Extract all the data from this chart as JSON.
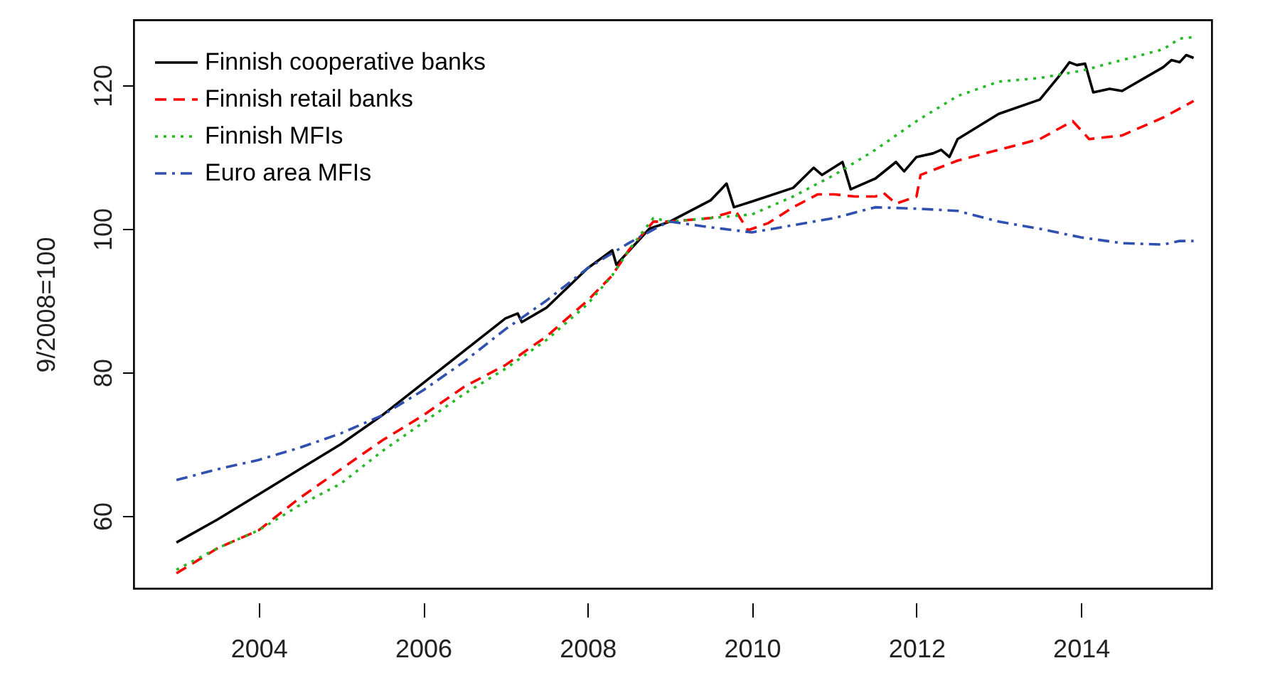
{
  "chart_data": {
    "type": "line",
    "ylabel": "9/2008=100",
    "xlim": [
      2002.48,
      2015.59
    ],
    "ylim": [
      49.9,
      129.1
    ],
    "xticks": [
      2004,
      2006,
      2008,
      2010,
      2012,
      2014
    ],
    "yticks": [
      60,
      80,
      100,
      120
    ],
    "grid": false,
    "legend": "top left",
    "marker": "none",
    "series": [
      {
        "name": "Finnish cooperative banks",
        "color": "#000000",
        "line_style": "solid",
        "x": [
          2003.0,
          2003.5,
          2004.0,
          2004.5,
          2005.0,
          2005.5,
          2006.0,
          2006.5,
          2007.0,
          2007.15,
          2007.2,
          2007.5,
          2008.0,
          2008.3,
          2008.35,
          2008.75,
          2009.0,
          2009.5,
          2009.69,
          2009.78,
          2010.0,
          2010.5,
          2010.75,
          2010.85,
          2011.1,
          2011.2,
          2011.5,
          2011.75,
          2011.85,
          2012.0,
          2012.2,
          2012.3,
          2012.4,
          2012.5,
          2013.0,
          2013.5,
          2013.75,
          2013.86,
          2013.95,
          2014.05,
          2014.15,
          2014.35,
          2014.5,
          2015.0,
          2015.1,
          2015.2,
          2015.28,
          2015.37
        ],
        "values": [
          56.3,
          59.5,
          63,
          66.5,
          70,
          74,
          78.5,
          83,
          87.5,
          88.2,
          87,
          89,
          94.5,
          97,
          95,
          100,
          101,
          104,
          106.3,
          103,
          103.8,
          105.7,
          108.5,
          107.5,
          109.3,
          105.5,
          107,
          109.3,
          108,
          110,
          110.5,
          111,
          110,
          112.5,
          116,
          118,
          121.5,
          123.2,
          122.8,
          123,
          119,
          119.5,
          119.2,
          122.5,
          123.5,
          123.2,
          124.2,
          123.8
        ]
      },
      {
        "name": "Finnish retail banks",
        "color": "#ff0000",
        "line_style": "dashed",
        "x": [
          2003.0,
          2003.5,
          2004.0,
          2004.5,
          2005.0,
          2005.5,
          2006.0,
          2006.5,
          2007.0,
          2007.5,
          2008.0,
          2008.3,
          2008.5,
          2008.8,
          2009.0,
          2009.5,
          2009.8,
          2009.95,
          2010.2,
          2010.5,
          2010.8,
          2011.0,
          2011.25,
          2011.5,
          2011.6,
          2011.75,
          2012.0,
          2012.05,
          2012.5,
          2013.0,
          2013.5,
          2013.9,
          2014.1,
          2014.5,
          2015.0,
          2015.37
        ],
        "values": [
          52.0,
          55.5,
          58,
          62.5,
          66.5,
          70.5,
          74,
          78,
          81,
          85,
          90,
          93.5,
          97,
          101,
          101,
          101.5,
          102.5,
          99.8,
          100.8,
          103,
          104.8,
          104.8,
          104.5,
          104.5,
          105,
          103.5,
          104.5,
          107.5,
          109.5,
          111,
          112.5,
          115,
          112.5,
          113,
          115.5,
          117.8
        ]
      },
      {
        "name": "Finnish MFIs",
        "color": "#22bb22",
        "line_style": "dotted",
        "x": [
          2003.0,
          2003.5,
          2004.0,
          2004.5,
          2005.0,
          2005.5,
          2006.0,
          2006.5,
          2007.0,
          2007.5,
          2008.0,
          2008.3,
          2008.5,
          2008.8,
          2009.0,
          2009.5,
          2010.0,
          2010.5,
          2011.0,
          2011.5,
          2012.0,
          2012.5,
          2013.0,
          2013.5,
          2014.0,
          2014.5,
          2015.0,
          2015.2,
          2015.37
        ],
        "values": [
          52.5,
          55.5,
          58,
          61.5,
          64.5,
          69,
          73,
          77,
          80.5,
          84.5,
          89.5,
          93.5,
          97,
          101.5,
          101,
          101.5,
          102,
          104.5,
          107.5,
          111,
          115,
          118.5,
          120.5,
          121,
          122,
          123.5,
          125,
          126.5,
          126.7
        ]
      },
      {
        "name": "Euro area MFIs",
        "color": "#3050b0",
        "line_style": "dashdot",
        "x": [
          2003.0,
          2003.5,
          2004.0,
          2004.5,
          2005.0,
          2005.5,
          2006.0,
          2006.5,
          2007.0,
          2007.5,
          2008.0,
          2008.5,
          2008.9,
          2009.0,
          2009.5,
          2010.0,
          2010.5,
          2011.0,
          2011.5,
          2012.0,
          2012.5,
          2013.0,
          2013.5,
          2014.0,
          2014.5,
          2015.0,
          2015.2,
          2015.37
        ],
        "values": [
          65,
          66.5,
          67.8,
          69.5,
          71.5,
          74,
          77.5,
          81.5,
          86,
          90,
          94.5,
          98,
          100.5,
          101,
          100.2,
          99.5,
          100.5,
          101.5,
          103,
          102.8,
          102.5,
          101,
          100,
          98.8,
          98,
          97.8,
          98.3,
          98.3
        ]
      }
    ]
  }
}
